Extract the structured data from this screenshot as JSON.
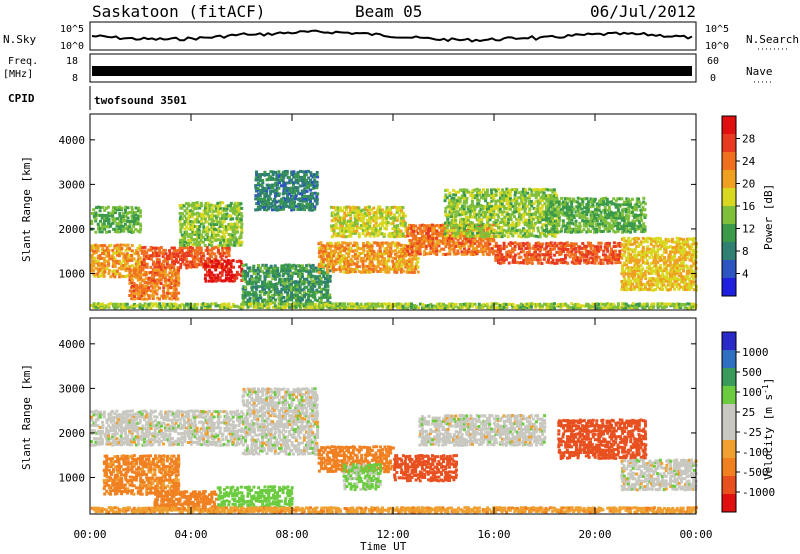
{
  "header": {
    "station": "Saskatoon (fitACF)",
    "beam": "Beam 05",
    "date": "06/Jul/2012"
  },
  "top_strips": {
    "nsky": {
      "label": "N.Sky",
      "ticks": [
        "10^5",
        "10^0"
      ],
      "right_ticks": [
        "10^5",
        "10^0"
      ],
      "right_label": "N.Search"
    },
    "freq": {
      "label_line1": "Freq.",
      "label_line2": "[MHz]",
      "ticks": [
        "18",
        "8"
      ],
      "right_ticks": [
        "60",
        "0"
      ],
      "right_label": "Nave"
    },
    "cpid": {
      "label": "CPID",
      "mode": "twofsound 3501"
    }
  },
  "colors": {
    "power_scale": [
      "#1f1fe0",
      "#2c55c2",
      "#2f7f72",
      "#3a9a4a",
      "#7fbf3a",
      "#d8d820",
      "#f0a020",
      "#f07020",
      "#e83a20",
      "#e01010"
    ],
    "velocity_scale": [
      "#2a2ac8",
      "#2e6fc2",
      "#3a9a5a",
      "#6ccc40",
      "#c8c8c0",
      "#c8c8c0",
      "#f0a030",
      "#f08020",
      "#e85020",
      "#e01010"
    ],
    "ground_scatter": "#b8b8b8"
  },
  "chart_data": [
    {
      "type": "heatmap",
      "name": "power",
      "xlabel": "Time UT",
      "ylabel": "Slant Range [km]",
      "x_ticks": [
        "00:00",
        "04:00",
        "08:00",
        "12:00",
        "16:00",
        "20:00",
        "00:00"
      ],
      "y_ticks": [
        "1000",
        "2000",
        "3000",
        "4000"
      ],
      "ylim": [
        180,
        4580
      ],
      "xlim_hours": [
        0,
        24
      ],
      "colorbar": {
        "label": "Power [dB]",
        "ticks": [
          "4",
          "8",
          "12",
          "16",
          "20",
          "24",
          "28"
        ],
        "range": [
          0,
          30
        ]
      },
      "bands": [
        {
          "t0": 0.0,
          "t1": 2.0,
          "r_lo": 900,
          "r_hi": 1650,
          "v": 20
        },
        {
          "t0": 0.0,
          "t1": 2.0,
          "r_lo": 1900,
          "r_hi": 2500,
          "v": 12
        },
        {
          "t0": 1.5,
          "t1": 3.5,
          "r_lo": 400,
          "r_hi": 1100,
          "v": 22
        },
        {
          "t0": 2.0,
          "t1": 5.5,
          "r_lo": 1100,
          "r_hi": 1600,
          "v": 24
        },
        {
          "t0": 3.5,
          "t1": 6.0,
          "r_lo": 1600,
          "r_hi": 2600,
          "v": 14
        },
        {
          "t0": 4.5,
          "t1": 6.0,
          "r_lo": 800,
          "r_hi": 1300,
          "v": 28
        },
        {
          "t0": 6.0,
          "t1": 9.5,
          "r_lo": 300,
          "r_hi": 1200,
          "v": 10
        },
        {
          "t0": 6.5,
          "t1": 9.0,
          "r_lo": 2400,
          "r_hi": 3300,
          "v": 8
        },
        {
          "t0": 9.0,
          "t1": 13.0,
          "r_lo": 1000,
          "r_hi": 1700,
          "v": 20
        },
        {
          "t0": 9.5,
          "t1": 12.5,
          "r_lo": 1800,
          "r_hi": 2500,
          "v": 16
        },
        {
          "t0": 12.5,
          "t1": 16.0,
          "r_lo": 1400,
          "r_hi": 2100,
          "v": 22
        },
        {
          "t0": 14.0,
          "t1": 18.5,
          "r_lo": 1800,
          "r_hi": 2900,
          "v": 14
        },
        {
          "t0": 16.0,
          "t1": 21.0,
          "r_lo": 1200,
          "r_hi": 1700,
          "v": 24
        },
        {
          "t0": 18.0,
          "t1": 22.0,
          "r_lo": 1900,
          "r_hi": 2700,
          "v": 12
        },
        {
          "t0": 21.0,
          "t1": 24.0,
          "r_lo": 600,
          "r_hi": 1800,
          "v": 18
        },
        {
          "t0": 0.0,
          "t1": 24.0,
          "r_lo": 200,
          "r_hi": 320,
          "v": 14
        }
      ]
    },
    {
      "type": "heatmap",
      "name": "velocity",
      "xlabel": "Time UT",
      "ylabel": "Slant Range [km]",
      "x_ticks": [
        "00:00",
        "04:00",
        "08:00",
        "12:00",
        "16:00",
        "20:00",
        "00:00"
      ],
      "y_ticks": [
        "1000",
        "2000",
        "3000",
        "4000"
      ],
      "ylim": [
        180,
        4580
      ],
      "xlim_hours": [
        0,
        24
      ],
      "colorbar": {
        "label": "Velocity [m s^-1]",
        "ticks": [
          "1000",
          "500",
          "100",
          "25",
          "-25",
          "-100",
          "-500",
          "-1000"
        ]
      },
      "bands": [
        {
          "t0": 0.0,
          "t1": 6.0,
          "r_lo": 1700,
          "r_hi": 2500,
          "v": 0
        },
        {
          "t0": 0.5,
          "t1": 3.5,
          "r_lo": 600,
          "r_hi": 1500,
          "v": -120
        },
        {
          "t0": 2.5,
          "t1": 5.0,
          "r_lo": 250,
          "r_hi": 700,
          "v": -300
        },
        {
          "t0": 5.0,
          "t1": 8.0,
          "r_lo": 300,
          "r_hi": 800,
          "v": 60
        },
        {
          "t0": 6.0,
          "t1": 9.0,
          "r_lo": 1500,
          "r_hi": 3000,
          "v": 0
        },
        {
          "t0": 9.0,
          "t1": 12.0,
          "r_lo": 1100,
          "r_hi": 1700,
          "v": -450
        },
        {
          "t0": 10.0,
          "t1": 11.5,
          "r_lo": 700,
          "r_hi": 1300,
          "v": 40
        },
        {
          "t0": 12.0,
          "t1": 14.5,
          "r_lo": 900,
          "r_hi": 1500,
          "v": -600
        },
        {
          "t0": 13.0,
          "t1": 18.0,
          "r_lo": 1700,
          "r_hi": 2400,
          "v": 0
        },
        {
          "t0": 18.5,
          "t1": 22.0,
          "r_lo": 1400,
          "r_hi": 2300,
          "v": -700
        },
        {
          "t0": 21.0,
          "t1": 24.0,
          "r_lo": 700,
          "r_hi": 1400,
          "v": 0
        },
        {
          "t0": 0.0,
          "t1": 24.0,
          "r_lo": 200,
          "r_hi": 320,
          "v": -80
        }
      ]
    }
  ]
}
